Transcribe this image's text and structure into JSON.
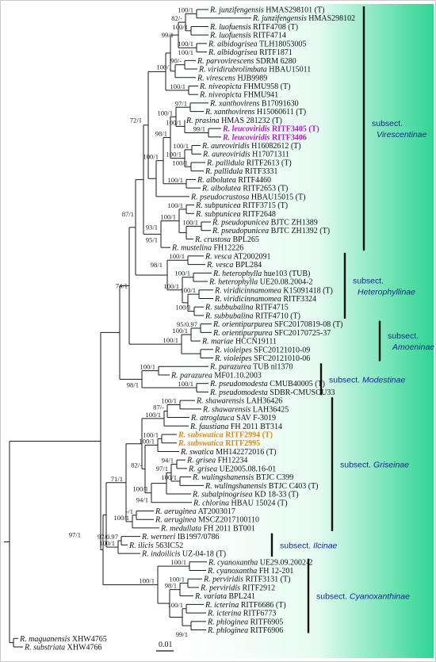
{
  "taxa": [
    {
      "id": "t01",
      "genus": "R.",
      "epithet": "junzifengensis",
      "voucher": "HMAS298101 (T)"
    },
    {
      "id": "t02",
      "genus": "R.",
      "epithet": "junzifengensis",
      "voucher": "HMAS298102"
    },
    {
      "id": "t03",
      "genus": "R.",
      "epithet": "luofuensis",
      "voucher": "RITF4708 (T)"
    },
    {
      "id": "t04",
      "genus": "R.",
      "epithet": "luofuensis",
      "voucher": "RITF4714"
    },
    {
      "id": "t05",
      "genus": "R.",
      "epithet": "albidogrisea",
      "voucher": "TLH18053005"
    },
    {
      "id": "t06",
      "genus": "R.",
      "epithet": "albidogrisea",
      "voucher": "RITF1871"
    },
    {
      "id": "t07",
      "genus": "R.",
      "epithet": "parvovirescens",
      "voucher": "SDRM 6280"
    },
    {
      "id": "t08",
      "genus": "R.",
      "epithet": "viridirubrolimbata",
      "voucher": "HBAU15011"
    },
    {
      "id": "t09",
      "genus": "R.",
      "epithet": "virescens",
      "voucher": "HJB9989"
    },
    {
      "id": "t10",
      "genus": "R.",
      "epithet": "niveopicta",
      "voucher": "FHMU958 (T)"
    },
    {
      "id": "t11",
      "genus": "R.",
      "epithet": "niveopicta",
      "voucher": "FHMU941"
    },
    {
      "id": "t12",
      "genus": "R.",
      "epithet": "xanthovirens",
      "voucher": "B17091630"
    },
    {
      "id": "t13",
      "genus": "R.",
      "epithet": "xanthovirens",
      "voucher": "H15060611 (T)"
    },
    {
      "id": "t14",
      "genus": "R.",
      "epithet": "prasina",
      "voucher": "HMAS 281232 (T)"
    },
    {
      "id": "t15",
      "genus": "R.",
      "epithet": "leucoviridis",
      "voucher": "RITF3405 (T)",
      "highlight": "purple"
    },
    {
      "id": "t16",
      "genus": "R.",
      "epithet": "leucoviridis",
      "voucher": "RITF3406",
      "highlight": "purple"
    },
    {
      "id": "t17",
      "genus": "R.",
      "epithet": "aureoviridis",
      "voucher": "H16082612 (T)"
    },
    {
      "id": "t18",
      "genus": "R.",
      "epithet": "aureoviridis",
      "voucher": "H17071311"
    },
    {
      "id": "t19",
      "genus": "R.",
      "epithet": "pallidula",
      "voucher": "RITF2613 (T)"
    },
    {
      "id": "t20",
      "genus": "R.",
      "epithet": "pallidula",
      "voucher": "RITF3331"
    },
    {
      "id": "t21",
      "genus": "R.",
      "epithet": "albolutea",
      "voucher": "RITF4460"
    },
    {
      "id": "t22",
      "genus": "R.",
      "epithet": "albolutea",
      "voucher": "RITF2653 (T)"
    },
    {
      "id": "t23",
      "genus": "R.",
      "epithet": "pseudocrustosa",
      "voucher": "HBAU15015 (T)"
    },
    {
      "id": "t24",
      "genus": "R.",
      "epithet": "subpunicea",
      "voucher": "RITF3715 (T)"
    },
    {
      "id": "t25",
      "genus": "R.",
      "epithet": "subpunicea",
      "voucher": "RITF2648"
    },
    {
      "id": "t26",
      "genus": "R.",
      "epithet": "pseudopunicea",
      "voucher": "BJTC ZH1389"
    },
    {
      "id": "t27",
      "genus": "R.",
      "epithet": "pseudopunicea",
      "voucher": "BJTC ZH1392 (T)"
    },
    {
      "id": "t28",
      "genus": "R.",
      "epithet": "crustosa",
      "voucher": "BPL265"
    },
    {
      "id": "t29",
      "genus": "R.",
      "epithet": "mustelina",
      "voucher": "FH12226"
    },
    {
      "id": "t30",
      "genus": "R.",
      "epithet": "vesca",
      "voucher": "AT2002091"
    },
    {
      "id": "t31",
      "genus": "R.",
      "epithet": "vesca",
      "voucher": "BPL284"
    },
    {
      "id": "t32",
      "genus": "R.",
      "epithet": "heterophylla",
      "voucher": "hue103 (TUB)"
    },
    {
      "id": "t33",
      "genus": "R.",
      "epithet": "heterophylla",
      "voucher": "UE20.08.2004-2"
    },
    {
      "id": "t34",
      "genus": "R.",
      "epithet": "viridicinnamomea",
      "voucher": "K15091418 (T)"
    },
    {
      "id": "t35",
      "genus": "R.",
      "epithet": "viridicinnamomea",
      "voucher": "RITF3324"
    },
    {
      "id": "t36",
      "genus": "R.",
      "epithet": "subbubalina",
      "voucher": "RITF4715"
    },
    {
      "id": "t37",
      "genus": "R.",
      "epithet": "subbubalina",
      "voucher": "RITF4710 (T)"
    },
    {
      "id": "t38",
      "genus": "R.",
      "epithet": "orientipurpurea",
      "voucher": "SFC20170819-08 (T)"
    },
    {
      "id": "t39",
      "genus": "R.",
      "epithet": "orientipurpurea",
      "voucher": "SFC20170725-37"
    },
    {
      "id": "t40",
      "genus": "R.",
      "epithet": "mariae",
      "voucher": "HCCN19111"
    },
    {
      "id": "t41",
      "genus": "R.",
      "epithet": "violeipes",
      "voucher": "SFC20121010-09"
    },
    {
      "id": "t42",
      "genus": "R.",
      "epithet": "violeipes",
      "voucher": "SFC20121010-06"
    },
    {
      "id": "t43",
      "genus": "R.",
      "epithet": "parazurea",
      "voucher": "TUB nl1370"
    },
    {
      "id": "t44",
      "genus": "R.",
      "epithet": "parazurea",
      "voucher": "MF01.10.2003"
    },
    {
      "id": "t45",
      "genus": "R.",
      "epithet": "pseudomodesta",
      "voucher": "CMUB40005 (T)"
    },
    {
      "id": "t46",
      "genus": "R.",
      "epithet": "pseudomodesta",
      "voucher": "SDBR-CMUSOU33"
    },
    {
      "id": "t47",
      "genus": "R.",
      "epithet": "shawarensis",
      "voucher": "LAH36426"
    },
    {
      "id": "t48",
      "genus": "R.",
      "epithet": "shawarensis",
      "voucher": "LAH36425"
    },
    {
      "id": "t49",
      "genus": "R.",
      "epithet": "atroglauca",
      "voucher": "SAV F-3019"
    },
    {
      "id": "t50",
      "genus": "R.",
      "epithet": "faustiana",
      "voucher": "FH 2011 BT314"
    },
    {
      "id": "t51",
      "genus": "R.",
      "epithet": "subswatica",
      "voucher": "RITF2994 (T)",
      "highlight": "orange"
    },
    {
      "id": "t52",
      "genus": "R.",
      "epithet": "subswatica",
      "voucher": "RITF2995",
      "highlight": "orange"
    },
    {
      "id": "t53",
      "genus": "R.",
      "epithet": "swatica",
      "voucher": "MH142272016 (T)"
    },
    {
      "id": "t54",
      "genus": "R.",
      "epithet": "grisea",
      "voucher": "FH12234"
    },
    {
      "id": "t55",
      "genus": "R.",
      "epithet": "grisea",
      "voucher": "UE2005.08.16-01"
    },
    {
      "id": "t56",
      "genus": "R.",
      "epithet": "wulingshanensis",
      "voucher": "BTJC C399"
    },
    {
      "id": "t57",
      "genus": "R.",
      "epithet": "wulingshanensis",
      "voucher": "BTJC C403 (T)"
    },
    {
      "id": "t58",
      "genus": "R.",
      "epithet": "subalpinogrisea",
      "voucher": "KD 18-33 (T)"
    },
    {
      "id": "t59",
      "genus": "R.",
      "epithet": "chlorina",
      "voucher": "HBAU 15024 (T)"
    },
    {
      "id": "t60",
      "genus": "R.",
      "epithet": "aeruginea",
      "voucher": "AT2003017"
    },
    {
      "id": "t61",
      "genus": "R.",
      "epithet": "aeruginea",
      "voucher": "MSCZ2017100110"
    },
    {
      "id": "t62",
      "genus": "R.",
      "epithet": "medullata",
      "voucher": "FH 2011 BT001"
    },
    {
      "id": "t63",
      "genus": "R.",
      "epithet": "werneri",
      "voucher": "IB1997/0786"
    },
    {
      "id": "t64",
      "genus": "R.",
      "epithet": "ilicis",
      "voucher": "563IC52"
    },
    {
      "id": "t65",
      "genus": "R.",
      "epithet": "indoilicis",
      "voucher": "UZ-04-18 (T)"
    },
    {
      "id": "t66",
      "genus": "R.",
      "epithet": "cyanoxantha",
      "voucher": "UE29.09.2002-2"
    },
    {
      "id": "t67",
      "genus": "R.",
      "epithet": "cyanoxantha",
      "voucher": "FH 12-201"
    },
    {
      "id": "t68",
      "genus": "R.",
      "epithet": "perviridis",
      "voucher": "RITF3131 (T)"
    },
    {
      "id": "t69",
      "genus": "R.",
      "epithet": "perviridis",
      "voucher": "RITF2912"
    },
    {
      "id": "t70",
      "genus": "R.",
      "epithet": "variata",
      "voucher": "BPL241"
    },
    {
      "id": "t71",
      "genus": "R.",
      "epithet": "icterina",
      "voucher": "RITF6686 (T)"
    },
    {
      "id": "t72",
      "genus": "R.",
      "epithet": "icterina",
      "voucher": "RITF6773"
    },
    {
      "id": "t73",
      "genus": "R.",
      "epithet": "phloginea",
      "voucher": "RITF6905"
    },
    {
      "id": "t74",
      "genus": "R.",
      "epithet": "phloginea",
      "voucher": "RITF6906"
    },
    {
      "id": "t75",
      "genus": "R.",
      "epithet": "maguanensis",
      "voucher": "XHW4765"
    },
    {
      "id": "t76",
      "genus": "R.",
      "epithet": "substriata",
      "voucher": "XHW4766"
    }
  ],
  "support_values": [
    {
      "id": "s01",
      "text": "100/1"
    },
    {
      "id": "s02",
      "text": "82/-"
    },
    {
      "id": "s03",
      "text": "100/1"
    },
    {
      "id": "s04",
      "text": "99/1"
    },
    {
      "id": "s05",
      "text": "100/1"
    },
    {
      "id": "s06",
      "text": "100/1"
    },
    {
      "id": "s07",
      "text": "90/-"
    },
    {
      "id": "s08",
      "text": "100/1"
    },
    {
      "id": "s09",
      "text": "100/1"
    },
    {
      "id": "s10",
      "text": "97/1"
    },
    {
      "id": "s11",
      "text": "100/1"
    },
    {
      "id": "s12",
      "text": "100/1"
    },
    {
      "id": "s13",
      "text": "99/1"
    },
    {
      "id": "s14",
      "text": "100/1"
    },
    {
      "id": "s15",
      "text": "100/1"
    },
    {
      "id": "s16",
      "text": "98/1"
    },
    {
      "id": "s17",
      "text": "100/1"
    },
    {
      "id": "s18",
      "text": "100/1"
    },
    {
      "id": "s19",
      "text": "100/1"
    },
    {
      "id": "s20",
      "text": "100/1"
    },
    {
      "id": "s21",
      "text": "100/1"
    },
    {
      "id": "s22",
      "text": "100/1"
    },
    {
      "id": "s23",
      "text": "93/1"
    },
    {
      "id": "s24",
      "text": "95/1"
    },
    {
      "id": "s25",
      "text": "100/1"
    },
    {
      "id": "s26",
      "text": "98/1"
    },
    {
      "id": "s27",
      "text": "100/1"
    },
    {
      "id": "s28",
      "text": "72/1"
    },
    {
      "id": "s29",
      "text": "100/1"
    },
    {
      "id": "s30",
      "text": "100/1"
    },
    {
      "id": "s31",
      "text": "100/1"
    },
    {
      "id": "s32",
      "text": "87/1"
    },
    {
      "id": "s33",
      "text": "95/0.97"
    },
    {
      "id": "s34",
      "text": "100/1"
    },
    {
      "id": "s35",
      "text": "74/1"
    },
    {
      "id": "s36",
      "text": "100/1"
    },
    {
      "id": "s37",
      "text": "100/1"
    },
    {
      "id": "s38",
      "text": "100/1"
    },
    {
      "id": "s39",
      "text": "98/1"
    },
    {
      "id": "s40",
      "text": "100/1"
    },
    {
      "id": "s41",
      "text": "87/-"
    },
    {
      "id": "s42",
      "text": "100/1"
    },
    {
      "id": "s43",
      "text": "100/1"
    },
    {
      "id": "s44",
      "text": "100/1"
    },
    {
      "id": "s45",
      "text": "82/-"
    },
    {
      "id": "s46",
      "text": "94/1"
    },
    {
      "id": "s47",
      "text": "97/1"
    },
    {
      "id": "s48",
      "text": "100/1"
    },
    {
      "id": "s49",
      "text": "100/1"
    },
    {
      "id": "s50",
      "text": "94/1"
    },
    {
      "id": "s51",
      "text": "71/1"
    },
    {
      "id": "s52",
      "text": "-/1"
    },
    {
      "id": "s53",
      "text": "100/1"
    },
    {
      "id": "s54",
      "text": "97/0.97"
    },
    {
      "id": "s55",
      "text": "100/1"
    },
    {
      "id": "s56",
      "text": "97/1"
    },
    {
      "id": "s57",
      "text": "100/1"
    },
    {
      "id": "s58",
      "text": "100/1"
    },
    {
      "id": "s59",
      "text": "98/1"
    },
    {
      "id": "s60",
      "text": "100/1"
    },
    {
      "id": "s61",
      "text": "100/1"
    },
    {
      "id": "s62",
      "text": "99/1"
    }
  ],
  "groups": [
    {
      "id": "g1",
      "prefix": "subsect.",
      "name": "Virescentinae"
    },
    {
      "id": "g2",
      "prefix": "subsect.",
      "name": "Heterophyllinae"
    },
    {
      "id": "g3",
      "prefix": "subsect.",
      "name": "Amoeninae"
    },
    {
      "id": "g4",
      "prefix": "subsect.",
      "name": "Modestinae"
    },
    {
      "id": "g5",
      "prefix": "subsect.",
      "name": "Griseinae"
    },
    {
      "id": "g6",
      "prefix": "subsect.",
      "name": "Ilcinae"
    },
    {
      "id": "g7",
      "prefix": "subsect.",
      "name": "Cyanoxanthinae"
    }
  ],
  "scale_bar": {
    "label": "0.01"
  },
  "colors": {
    "branch": "#1a1a1a",
    "highlight_purple": "#b41cc8",
    "highlight_orange": "#e08a12",
    "group_label": "#14288f",
    "gradient_end": "#2fd592"
  }
}
